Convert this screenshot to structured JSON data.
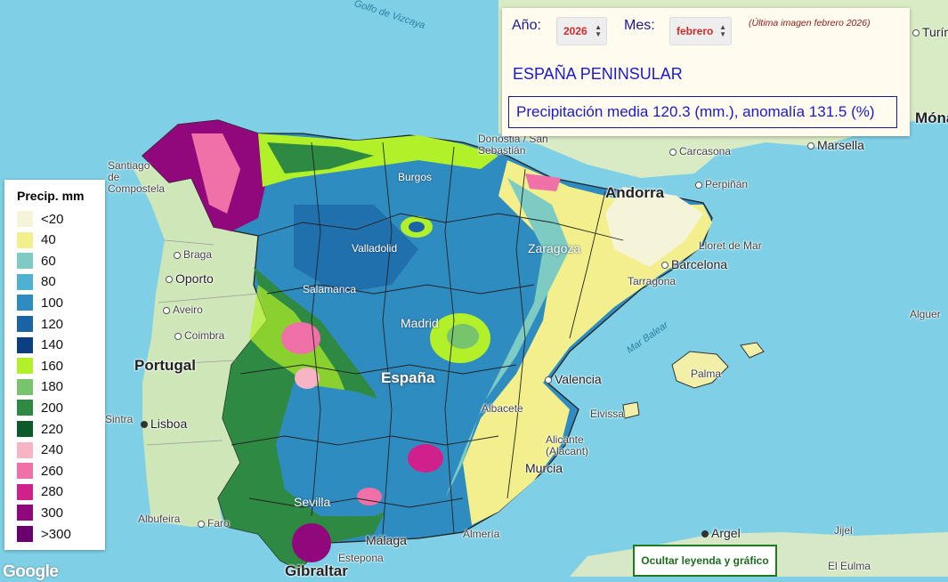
{
  "panel": {
    "year_label": "Año:",
    "year_value": "2026",
    "month_label": "Mes:",
    "month_value": "febrero",
    "last_image_note": "(Última imagen febrero 2026)",
    "region": "ESPAÑA PENINSULAR",
    "stats": "Precipitación media 120.3 (mm.), anomalía 131.5 (%)"
  },
  "legend": {
    "title": "Precip. mm",
    "items": [
      {
        "label": "<20",
        "color": "#f6f4d8"
      },
      {
        "label": "40",
        "color": "#f2ef8c"
      },
      {
        "label": "60",
        "color": "#7dcbc2"
      },
      {
        "label": "80",
        "color": "#4fb0d4"
      },
      {
        "label": "100",
        "color": "#2f8cc0"
      },
      {
        "label": "120",
        "color": "#1a64a6"
      },
      {
        "label": "140",
        "color": "#0c3e82"
      },
      {
        "label": "160",
        "color": "#b2f02a"
      },
      {
        "label": "180",
        "color": "#78c46c"
      },
      {
        "label": "200",
        "color": "#2e8a42"
      },
      {
        "label": "220",
        "color": "#0a5a2a"
      },
      {
        "label": "240",
        "color": "#f6b4c4"
      },
      {
        "label": "260",
        "color": "#f070a8"
      },
      {
        "label": "280",
        "color": "#d0208c"
      },
      {
        "label": "300",
        "color": "#90087c"
      },
      {
        "label": ">300",
        "color": "#6a0070"
      }
    ]
  },
  "hide_button": "Ocultar leyenda y gráfico",
  "attribution": "Google",
  "map_labels": {
    "portugal": "Portugal",
    "espana": "España",
    "andorra": "Andorra",
    "oporto": "Oporto",
    "braga": "Braga",
    "aveiro": "Aveiro",
    "coimbra": "Coimbra",
    "lisboa": "Lisboa",
    "sintra": "Sintra",
    "faro": "Faro",
    "albufeira": "Albufeira",
    "santiago": "Santiago de Compostela",
    "donostia": "Donostia / San Sebastián",
    "burgos": "Burgos",
    "valladolid": "Valladolid",
    "salamanca": "Salamanca",
    "madrid": "Madrid",
    "zaragoza": "Zaragoza",
    "barcelona": "Barcelona",
    "tarragona": "Tarragona",
    "lloret": "Lloret de Mar",
    "perpignan": "Perpiñán",
    "carcasona": "Carcasona",
    "marsella": "Marsella",
    "turin": "Turín",
    "monaco": "Mónaco",
    "valencia": "Valencia",
    "palma": "Palma",
    "eivissa": "Eivissa",
    "alicante": "Alicante (Alacant)",
    "murcia": "Murcia",
    "albacete": "Albacete",
    "sevilla": "Sevilla",
    "malaga": "Málaga",
    "gibraltar": "Gibraltar",
    "estepona": "Estepona",
    "almeria": "Almería",
    "argel": "Argel",
    "jijel": "Jijel",
    "el_eulma": "El Eulma",
    "alguer": "Alguer",
    "golfo": "Golfo de Vizcaya",
    "mar_balear": "Mar Balear"
  }
}
